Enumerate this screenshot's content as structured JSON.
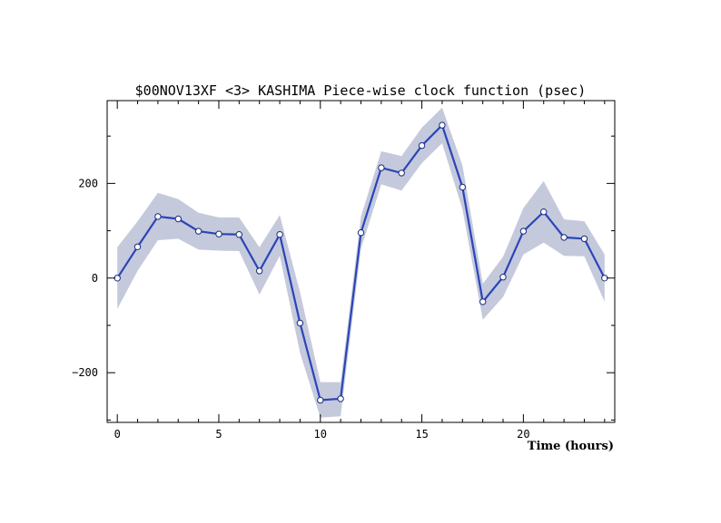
{
  "chart_data": {
    "type": "line",
    "title": "$00NOV13XF <3>  KASHIMA   Piece-wise clock function (psec)",
    "xlabel": "Time (hours)",
    "ylabel": "",
    "xlim": [
      -0.5,
      24.5
    ],
    "ylim": [
      -305,
      375
    ],
    "x_ticks": [
      0,
      5,
      10,
      15,
      20
    ],
    "y_ticks": [
      -200,
      0,
      200
    ],
    "grid": false,
    "legend": "none",
    "colors": {
      "line": "#2a45b8",
      "band": "#c5c9dc",
      "marker_fill": "#ffffff"
    },
    "series": [
      {
        "x": [
          0,
          1,
          2,
          3,
          4,
          5,
          6,
          7,
          8,
          9,
          10,
          11,
          12,
          13,
          14,
          15,
          16,
          17,
          18,
          19,
          20,
          21,
          22,
          23,
          24
        ],
        "values": [
          0,
          66,
          130,
          125,
          99,
          93,
          92,
          15,
          92,
          -95,
          -258,
          -255,
          96,
          233,
          222,
          280,
          323,
          192,
          -50,
          2,
          99,
          140,
          86,
          83,
          0
        ],
        "lower": [
          -65,
          15,
          80,
          83,
          60,
          58,
          57,
          -35,
          47,
          -158,
          -295,
          -292,
          62,
          198,
          185,
          243,
          285,
          145,
          -88,
          -40,
          50,
          75,
          47,
          46,
          -50
        ],
        "upper": [
          65,
          120,
          180,
          167,
          138,
          128,
          128,
          65,
          133,
          -30,
          -220,
          -220,
          130,
          268,
          258,
          318,
          360,
          238,
          -12,
          45,
          148,
          205,
          124,
          120,
          50
        ]
      }
    ]
  }
}
